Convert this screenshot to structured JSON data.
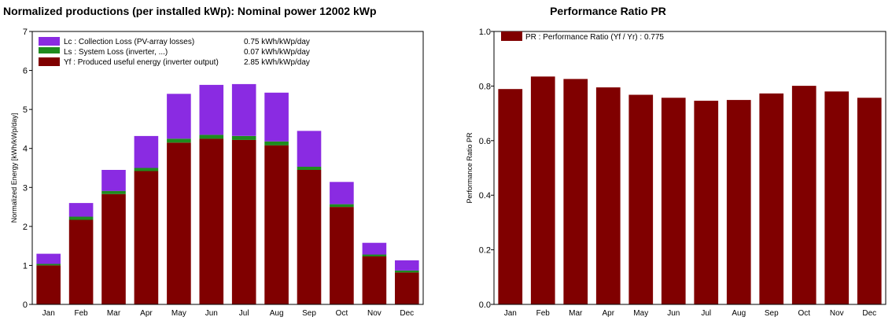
{
  "charts": {
    "left_title": "Normalized productions (per installed kWp):  Nominal power 12002 kWp",
    "right_title": "Performance Ratio PR"
  },
  "colors": {
    "lc": "#8a2be2",
    "ls": "#1e8c1e",
    "yf": "#800000",
    "pr": "#800000"
  },
  "chart_data": [
    {
      "type": "bar",
      "stacked": true,
      "title": "Normalized productions (per installed kWp):  Nominal power 12002 kWp",
      "ylabel": "Normalized Energy [kWh/kWp/day]",
      "xlabel": "",
      "ylim": [
        0,
        7
      ],
      "yticks": [
        0,
        1,
        2,
        3,
        4,
        5,
        6,
        7
      ],
      "categories": [
        "Jan",
        "Feb",
        "Mar",
        "Apr",
        "May",
        "Jun",
        "Jul",
        "Aug",
        "Sep",
        "Oct",
        "Nov",
        "Dec"
      ],
      "legend_position": "top-left",
      "series": [
        {
          "name": "Yf : Produced useful energy  (inverter output)",
          "value_label": "2.85 kWh/kWp/day",
          "values": [
            1.0,
            2.17,
            2.83,
            3.42,
            4.15,
            4.25,
            4.22,
            4.08,
            3.45,
            2.5,
            1.23,
            0.82
          ]
        },
        {
          "name": "Ls : System Loss  (inverter, ...)",
          "value_label": "0.07 kWh/kWp/day",
          "values": [
            0.04,
            0.08,
            0.08,
            0.08,
            0.1,
            0.1,
            0.1,
            0.1,
            0.08,
            0.07,
            0.05,
            0.05
          ]
        },
        {
          "name": "Lc : Collection Loss (PV-array losses)",
          "value_label": "0.75 kWh/kWp/day",
          "values": [
            0.26,
            0.35,
            0.54,
            0.82,
            1.15,
            1.28,
            1.33,
            1.25,
            0.92,
            0.57,
            0.3,
            0.26
          ]
        }
      ]
    },
    {
      "type": "bar",
      "title": "Performance Ratio PR",
      "ylabel": "Performance Ratio PR",
      "xlabel": "",
      "ylim": [
        0,
        1.0
      ],
      "yticks": [
        "0.0",
        "0.2",
        "0.4",
        "0.6",
        "0.8",
        "1.0"
      ],
      "categories": [
        "Jan",
        "Feb",
        "Mar",
        "Apr",
        "May",
        "Jun",
        "Jul",
        "Aug",
        "Sep",
        "Oct",
        "Nov",
        "Dec"
      ],
      "legend_position": "top-left",
      "series": [
        {
          "name": "PR : Performance Ratio (Yf / Yr) :  0.775",
          "values": [
            0.789,
            0.835,
            0.826,
            0.795,
            0.768,
            0.757,
            0.746,
            0.749,
            0.773,
            0.801,
            0.78,
            0.757
          ]
        }
      ]
    }
  ]
}
